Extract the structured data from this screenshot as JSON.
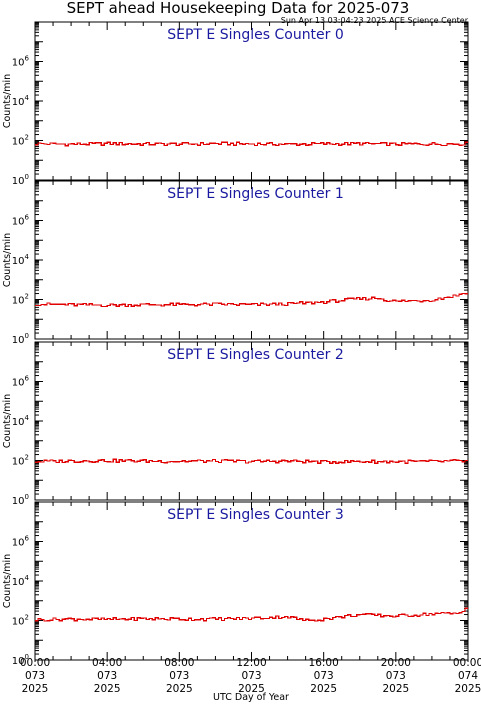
{
  "header": {
    "title": "SEPT ahead Housekeeping Data for 2025-073",
    "timestamp": "Sun Apr 13 03:04:23 2025 ACE Science Center"
  },
  "colors": {
    "trace": "#e00000",
    "panel_title": "#1a1aa0",
    "frame": "#000000"
  },
  "chart_data": [
    {
      "type": "line",
      "title": "SEPT E Singles Counter 0",
      "ylabel": "Counts/min",
      "yscale": "log",
      "ylim": [
        1,
        100000000
      ],
      "yticks": [
        {
          "base": "10",
          "exp": "0"
        },
        {
          "base": "10",
          "exp": "2"
        },
        {
          "base": "10",
          "exp": "4"
        },
        {
          "base": "10",
          "exp": "6"
        }
      ],
      "xlim": [
        0,
        24
      ],
      "series": [
        {
          "x": [
            0,
            2,
            4,
            6,
            8,
            10,
            12,
            14,
            16,
            18,
            20,
            22,
            24
          ],
          "values": [
            70,
            65,
            70,
            68,
            66,
            70,
            68,
            65,
            68,
            70,
            66,
            68,
            70
          ]
        }
      ]
    },
    {
      "type": "line",
      "title": "SEPT E Singles Counter 1",
      "ylabel": "Counts/min",
      "yscale": "log",
      "ylim": [
        1,
        100000000
      ],
      "yticks": [
        {
          "base": "10",
          "exp": "0"
        },
        {
          "base": "10",
          "exp": "2"
        },
        {
          "base": "10",
          "exp": "4"
        },
        {
          "base": "10",
          "exp": "6"
        }
      ],
      "xlim": [
        0,
        24
      ],
      "series": [
        {
          "x": [
            0,
            2,
            4,
            6,
            8,
            10,
            12,
            14,
            16,
            18,
            19,
            20,
            22,
            23.5,
            24
          ],
          "values": [
            60,
            55,
            52,
            55,
            55,
            58,
            55,
            60,
            75,
            110,
            120,
            80,
            95,
            170,
            250
          ]
        }
      ]
    },
    {
      "type": "line",
      "title": "SEPT E Singles Counter 2",
      "ylabel": "Counts/min",
      "yscale": "log",
      "ylim": [
        1,
        100000000
      ],
      "yticks": [
        {
          "base": "10",
          "exp": "0"
        },
        {
          "base": "10",
          "exp": "2"
        },
        {
          "base": "10",
          "exp": "4"
        },
        {
          "base": "10",
          "exp": "6"
        }
      ],
      "xlim": [
        0,
        24
      ],
      "series": [
        {
          "x": [
            0,
            2,
            4,
            6,
            8,
            10,
            12,
            14,
            16,
            18,
            20,
            22,
            24
          ],
          "values": [
            90,
            95,
            100,
            95,
            92,
            95,
            90,
            95,
            85,
            90,
            88,
            90,
            95
          ]
        }
      ]
    },
    {
      "type": "line",
      "title": "SEPT E Singles Counter 3",
      "ylabel": "Counts/min",
      "yscale": "log",
      "ylim": [
        1,
        100000000
      ],
      "yticks": [
        {
          "base": "10",
          "exp": "0"
        },
        {
          "base": "10",
          "exp": "2"
        },
        {
          "base": "10",
          "exp": "4"
        },
        {
          "base": "10",
          "exp": "6"
        }
      ],
      "xlim": [
        0,
        24
      ],
      "series": [
        {
          "x": [
            0,
            2,
            4,
            6,
            8,
            10,
            12,
            14,
            15,
            16,
            18,
            20,
            22,
            23.5,
            24
          ],
          "values": [
            110,
            120,
            115,
            125,
            120,
            120,
            130,
            160,
            100,
            120,
            200,
            170,
            220,
            230,
            500
          ]
        }
      ]
    }
  ],
  "x_axis": {
    "label": "UTC Day of Year",
    "ticks": [
      {
        "time": "00:00",
        "day": "073",
        "year": "2025"
      },
      {
        "time": "04:00",
        "day": "073",
        "year": "2025"
      },
      {
        "time": "08:00",
        "day": "073",
        "year": "2025"
      },
      {
        "time": "12:00",
        "day": "073",
        "year": "2025"
      },
      {
        "time": "16:00",
        "day": "073",
        "year": "2025"
      },
      {
        "time": "20:00",
        "day": "073",
        "year": "2025"
      },
      {
        "time": "00:00",
        "day": "074",
        "year": "2025"
      }
    ]
  }
}
